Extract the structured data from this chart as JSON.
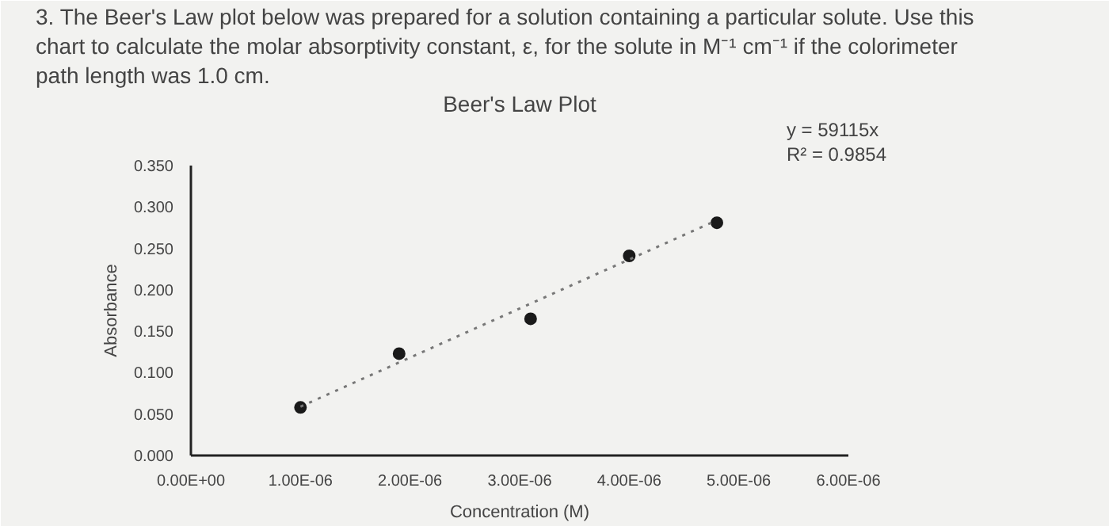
{
  "chart_data": {
    "type": "scatter",
    "title": "Beer's Law Plot",
    "xlabel": "Concentration (M)",
    "ylabel": "Absorbance",
    "annotations": [
      "3. The Beer's Law plot below was prepared for a solution containing a particular solute. Use this\nchart to calculate the molar absorptivity constant, ε, for the solute in M⁻¹ cm⁻¹ if the colorimeter\npath length was 1.0 cm.",
      "y = 59115x\nR² = 0.9854"
    ],
    "x": [
      1e-06,
      1.9e-06,
      3.1e-06,
      4e-06,
      4.8e-06
    ],
    "series": [
      {
        "color": "#1a1a1a",
        "values": [
          0.058,
          0.123,
          0.165,
          0.241,
          0.281
        ],
        "marker": "circle"
      },
      {
        "type": "line",
        "color": "#777777",
        "x": [
          1e-06,
          4.8e-06
        ],
        "values": [
          0.059,
          0.284
        ],
        "line_style": "dotted",
        "marker": "none"
      }
    ],
    "xlim": [
      0,
      6e-06
    ],
    "ylim": [
      0,
      0.35
    ],
    "xticks": [
      {
        "value": 0,
        "label": "0.00E+00"
      },
      {
        "value": 1e-06,
        "label": "1.00E-06"
      },
      {
        "value": 2e-06,
        "label": "2.00E-06"
      },
      {
        "value": 3e-06,
        "label": "3.00E-06"
      },
      {
        "value": 4e-06,
        "label": "4.00E-06"
      },
      {
        "value": 5e-06,
        "label": "5.00E-06"
      },
      {
        "value": 6e-06,
        "label": "6.00E-06"
      }
    ],
    "yticks": [
      {
        "value": 0,
        "label": "0.000"
      },
      {
        "value": 0.05,
        "label": "0.050"
      },
      {
        "value": 0.1,
        "label": "0.100"
      },
      {
        "value": 0.15,
        "label": "0.150"
      },
      {
        "value": 0.2,
        "label": "0.200"
      },
      {
        "value": 0.25,
        "label": "0.250"
      },
      {
        "value": 0.3,
        "label": "0.300"
      },
      {
        "value": 0.35,
        "label": "0.350"
      }
    ],
    "grid": false
  }
}
